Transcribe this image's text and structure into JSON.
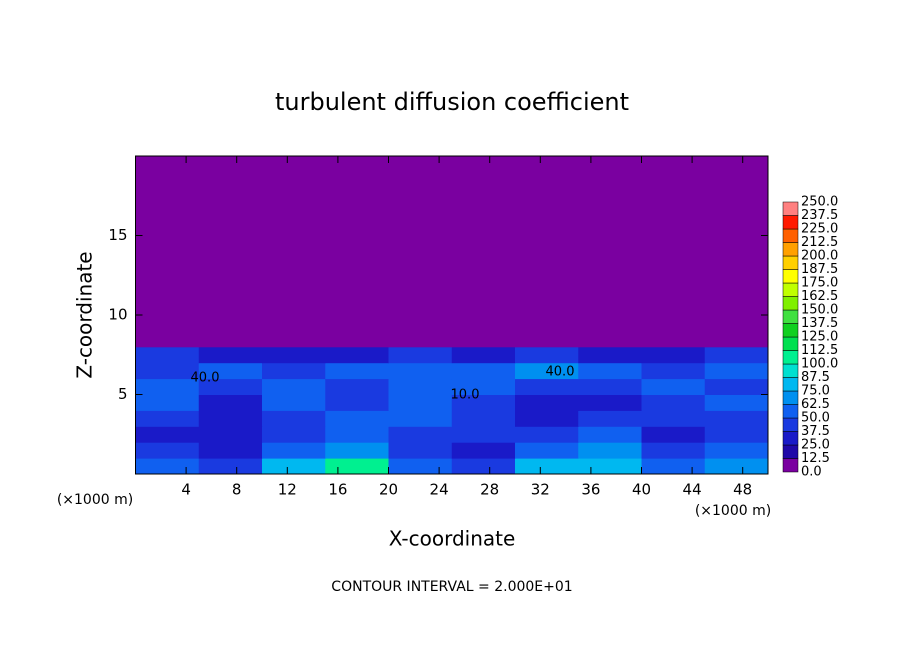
{
  "chart_data": {
    "type": "contour",
    "title": "turbulent diffusion coefficient",
    "xlabel": "X-coordinate",
    "ylabel": "Z-coordinate",
    "x_unit": "(×1000 m)",
    "y_unit": "(×1000 m)",
    "footnote": "CONTOUR INTERVAL = 2.000E+01",
    "contour_labels": [
      "40.0",
      "10.0",
      "40.0"
    ],
    "xlim": [
      0,
      50
    ],
    "ylim": [
      0,
      20
    ],
    "xticks": [
      4,
      8,
      12,
      16,
      20,
      24,
      28,
      32,
      36,
      40,
      44,
      48
    ],
    "yticks": [
      5,
      10,
      15
    ],
    "field": {
      "x_edges": [
        0,
        5,
        10,
        15,
        20,
        25,
        30,
        35,
        40,
        45,
        50
      ],
      "z_edges": [
        0,
        1,
        2,
        3,
        4,
        5,
        6,
        7,
        8,
        20
      ],
      "values": [
        [
          55,
          45,
          80,
          110,
          60,
          45,
          75,
          85,
          50,
          65
        ],
        [
          40,
          35,
          50,
          70,
          40,
          35,
          55,
          70,
          40,
          50
        ],
        [
          35,
          30,
          45,
          60,
          45,
          40,
          45,
          60,
          35,
          45
        ],
        [
          40,
          30,
          40,
          55,
          50,
          45,
          35,
          40,
          45,
          40
        ],
        [
          55,
          35,
          50,
          45,
          60,
          40,
          30,
          35,
          40,
          55
        ],
        [
          50,
          45,
          60,
          40,
          55,
          50,
          40,
          45,
          60,
          45
        ],
        [
          45,
          55,
          40,
          50,
          60,
          55,
          65,
          50,
          45,
          50
        ],
        [
          40,
          35,
          30,
          25,
          45,
          30,
          40,
          35,
          30,
          40
        ],
        [
          0,
          0,
          0,
          0,
          0,
          0,
          0,
          0,
          0,
          0
        ]
      ]
    },
    "colorbar": {
      "levels": [
        {
          "value": 0,
          "label": "0.0"
        },
        12.5,
        {
          "value": 25,
          "label": "25.0"
        },
        37.5,
        {
          "value": 50,
          "label": "50.0"
        },
        62.5,
        {
          "value": 75,
          "label": "75.0"
        },
        87.5,
        {
          "value": 100,
          "label": "100.0"
        },
        112.5,
        {
          "value": 125,
          "label": "125.0"
        },
        137.5,
        {
          "value": 150,
          "label": "150.0"
        },
        162.5,
        {
          "value": 175,
          "label": "175.0"
        },
        187.5,
        {
          "value": 200,
          "label": "200.0"
        },
        212.5,
        {
          "value": 225,
          "label": "225.0"
        },
        237.5,
        {
          "value": 250,
          "label": "250.0"
        }
      ],
      "colors": [
        "#7a00a0",
        "#2008a8",
        "#1a1ac8",
        "#1a3ae0",
        "#1060f0",
        "#0090f0",
        "#00b8f0",
        "#00e0d0",
        "#00f090",
        "#00e050",
        "#10d020",
        "#40e040",
        "#80f000",
        "#c0ff00",
        "#ffff00",
        "#ffd000",
        "#ffa000",
        "#ff6000",
        "#ff1a00",
        "#ff8080"
      ]
    }
  }
}
